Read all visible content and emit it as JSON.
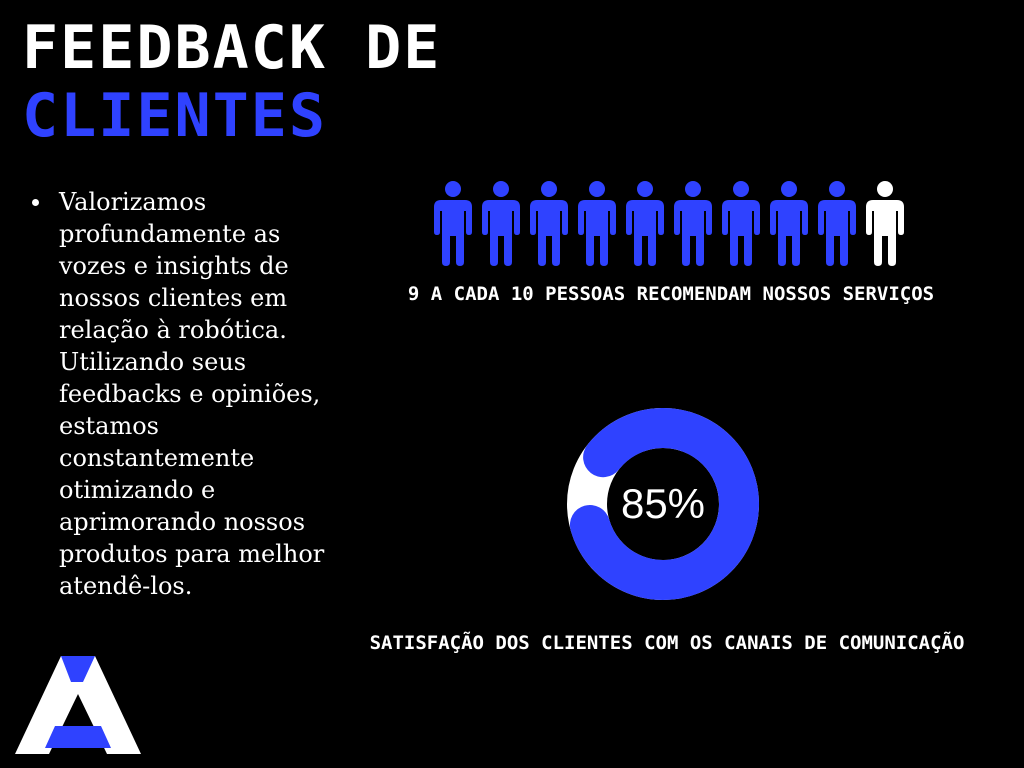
{
  "header": {
    "title_line1": "FEEDBACK DE",
    "title_line2": "CLIENTES"
  },
  "intro": {
    "text": "Valorizamos profundamente as vozes e insights de nossos clientes em relação à robótica. Utilizando seus feedbacks e opiniões, estamos constantemente otimizando e aprimorando nossos produtos para melhor atendê-los."
  },
  "recommendation": {
    "recommending": 9,
    "total": 10,
    "caption": "9 A CADA 10 PESSOAS RECOMENDAM NOSSOS SERVIÇOS"
  },
  "satisfaction": {
    "percent": 85,
    "label": "85%",
    "caption": "SATISFAÇÃO DOS CLIENTES COM OS CANAIS DE COMUNICAÇÃO"
  },
  "colors": {
    "accent": "#2f42ff",
    "text": "#ffffff",
    "background": "#000000"
  },
  "icons": {
    "person": "person-icon",
    "logo": "a-logo-icon"
  }
}
